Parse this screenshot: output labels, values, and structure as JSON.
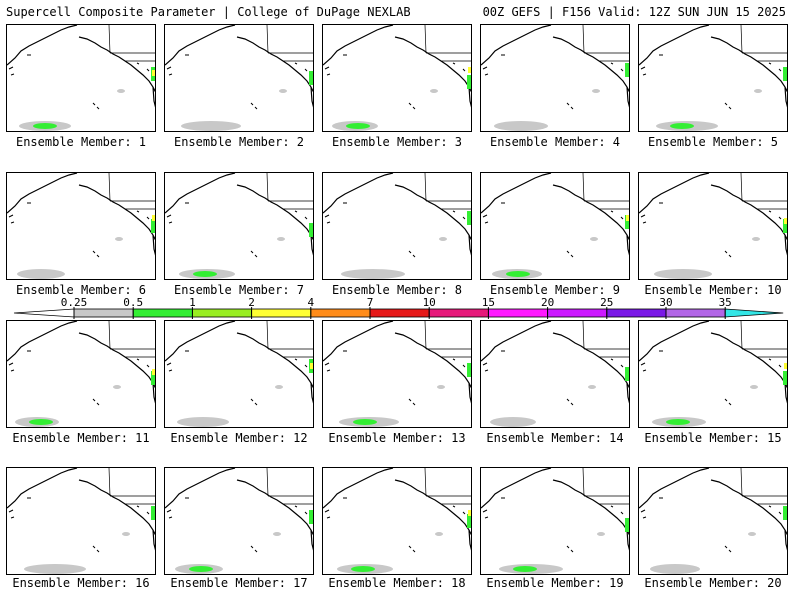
{
  "header": {
    "title": "Supercell Composite Parameter | College of DuPage NEXLAB",
    "run_info": "00Z GEFS | F156 Valid: 12Z SUN JUN 15 2025"
  },
  "member_label_prefix": "Ensemble Member:",
  "members": [
    1,
    2,
    3,
    4,
    5,
    6,
    7,
    8,
    9,
    10,
    11,
    12,
    13,
    14,
    15,
    16,
    17,
    18,
    19,
    20
  ],
  "colorbar": {
    "ticks": [
      "0.25",
      "0.5",
      "1",
      "2",
      "4",
      "7",
      "10",
      "15",
      "20",
      "25",
      "30",
      "35"
    ],
    "colors": [
      "#ffffff",
      "#c8c8c8",
      "#33ee33",
      "#99ee22",
      "#ffff33",
      "#ff8c1a",
      "#e61919",
      "#e6197a",
      "#ff19ff",
      "#cc19ff",
      "#7a19e6",
      "#b266e6",
      "#33e6e6"
    ]
  },
  "colors": {
    "light_fill": "#c8c8c8",
    "green_fill": "#33ee33",
    "yellow_fill": "#ffff33"
  }
}
